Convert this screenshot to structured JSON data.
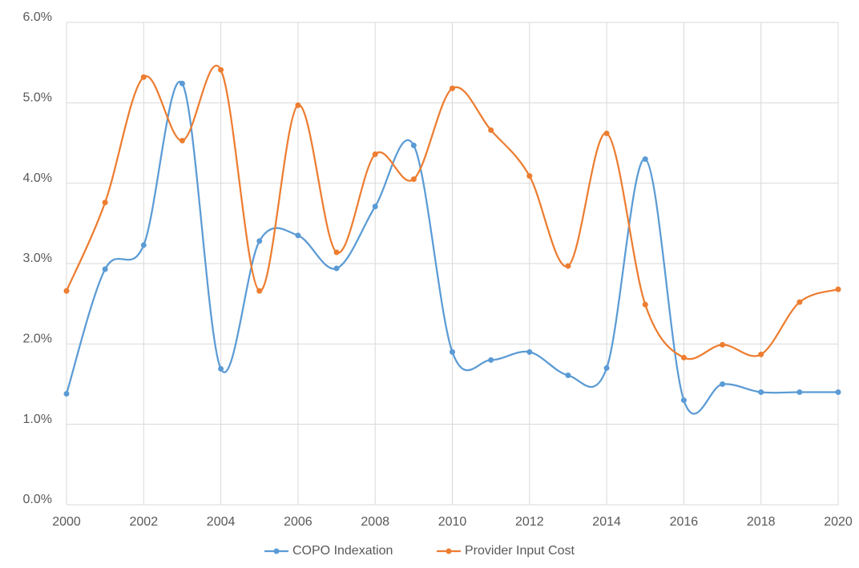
{
  "chart_data": {
    "type": "line",
    "smooth": true,
    "grid": true,
    "legend": "bottom",
    "x": [
      2000,
      2001,
      2002,
      2003,
      2004,
      2005,
      2006,
      2007,
      2008,
      2009,
      2010,
      2011,
      2012,
      2013,
      2014,
      2015,
      2016,
      2017,
      2018,
      2019,
      2020
    ],
    "xlim": [
      2000,
      2020
    ],
    "xticks": [
      2000,
      2002,
      2004,
      2006,
      2008,
      2010,
      2012,
      2014,
      2016,
      2018,
      2020
    ],
    "ylim": [
      0,
      6
    ],
    "yticks": [
      {
        "value": 0,
        "label": "0.0%"
      },
      {
        "value": 1,
        "label": "1.0%"
      },
      {
        "value": 2,
        "label": "2.0%"
      },
      {
        "value": 3,
        "label": "3.0%"
      },
      {
        "value": 4,
        "label": "4.0%"
      },
      {
        "value": 5,
        "label": "5.0%"
      },
      {
        "value": 6,
        "label": "6.0%"
      }
    ],
    "series": [
      {
        "name": "COPO Indexation",
        "color": "#5b9bd5",
        "values": [
          1.38,
          2.93,
          3.23,
          5.24,
          1.69,
          3.28,
          3.35,
          2.94,
          3.71,
          4.47,
          1.9,
          1.8,
          1.9,
          1.61,
          1.7,
          4.3,
          1.3,
          1.5,
          1.4,
          1.4,
          1.4
        ]
      },
      {
        "name": "Provider Input Cost",
        "color": "#ed7d31",
        "values": [
          2.66,
          3.76,
          5.32,
          4.53,
          5.41,
          2.66,
          4.97,
          3.14,
          4.36,
          4.05,
          5.18,
          4.66,
          4.09,
          2.97,
          4.62,
          2.49,
          1.83,
          1.99,
          1.87,
          2.52,
          2.68
        ]
      }
    ]
  }
}
